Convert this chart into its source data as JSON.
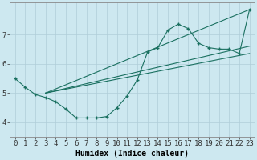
{
  "xlabel": "Humidex (Indice chaleur)",
  "background_color": "#cde8f0",
  "grid_color": "#b0cdd8",
  "line_color": "#1a7060",
  "xlim": [
    -0.5,
    23.5
  ],
  "ylim": [
    3.5,
    8.1
  ],
  "yticks": [
    4,
    5,
    6,
    7
  ],
  "xticks": [
    0,
    1,
    2,
    3,
    4,
    5,
    6,
    7,
    8,
    9,
    10,
    11,
    12,
    13,
    14,
    15,
    16,
    17,
    18,
    19,
    20,
    21,
    22,
    23
  ],
  "main_x": [
    0,
    1,
    2,
    3,
    4,
    5,
    6,
    7,
    8,
    9,
    10,
    11,
    12,
    13,
    14,
    15,
    16,
    17,
    18,
    19,
    20,
    21,
    22,
    23
  ],
  "main_y": [
    5.5,
    5.2,
    4.95,
    4.85,
    4.7,
    4.45,
    4.15,
    4.15,
    4.15,
    4.2,
    4.5,
    4.9,
    5.45,
    6.4,
    6.55,
    7.15,
    7.35,
    7.2,
    6.7,
    6.55,
    6.5,
    6.5,
    6.35,
    7.85
  ],
  "trend1_x": [
    3,
    23
  ],
  "trend1_y": [
    5.0,
    7.85
  ],
  "trend2_x": [
    3,
    23
  ],
  "trend2_y": [
    5.0,
    6.5
  ],
  "trend3_x": [
    3,
    23
  ],
  "trend3_y": [
    5.0,
    6.75
  ],
  "font_size": 6.5
}
